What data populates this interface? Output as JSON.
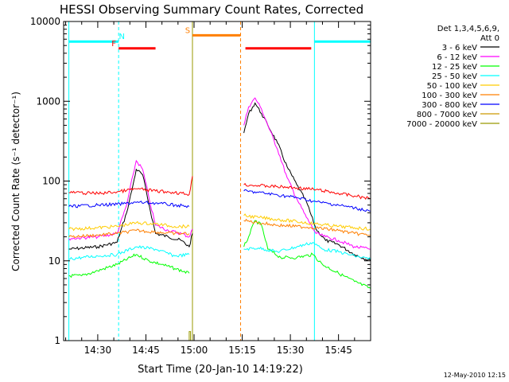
{
  "chart_data": {
    "type": "line",
    "title": "HESSI Observing Summary Count Rates, Corrected",
    "xlabel": "Start Time (20-Jan-10 14:19:22)",
    "ylabel": "Corrected Count Rate (s⁻¹ detector⁻¹)",
    "yscale": "log",
    "ylim": [
      1,
      10000
    ],
    "xlim": [
      "14:19:22",
      "15:55:00"
    ],
    "x_tick_labels": [
      "14:30",
      "14:45",
      "15:00",
      "15:15",
      "15:30",
      "15:45"
    ],
    "x_tick_minutes": [
      870,
      885,
      900,
      915,
      930,
      945
    ],
    "y_tick_labels": [
      "1",
      "10",
      "100",
      "1000",
      "10000"
    ],
    "y_tick_values": [
      1,
      10,
      100,
      1000,
      10000
    ],
    "legend": {
      "header_line1": "Det 1,3,4,5,6,9,",
      "header_line2": "Att 0",
      "position": "right"
    },
    "date_stamp": "12-May-2010 12:15",
    "series": [
      {
        "name": "3 - 6 keV",
        "color": "#000000",
        "points": [
          [
            861,
            14
          ],
          [
            870,
            15
          ],
          [
            876,
            17
          ],
          [
            879,
            40
          ],
          [
            881,
            90
          ],
          [
            882,
            140
          ],
          [
            884,
            120
          ],
          [
            886,
            50
          ],
          [
            888,
            22
          ],
          [
            892,
            20
          ],
          [
            896,
            18
          ],
          [
            898.5,
            15
          ],
          [
            899.5,
            22
          ],
          [
            915.5,
            400
          ],
          [
            917,
            700
          ],
          [
            919,
            950
          ],
          [
            921,
            700
          ],
          [
            923,
            500
          ],
          [
            926,
            300
          ],
          [
            929,
            150
          ],
          [
            932,
            90
          ],
          [
            935,
            55
          ],
          [
            938,
            25
          ],
          [
            941,
            18
          ],
          [
            945,
            16
          ],
          [
            950,
            12
          ],
          [
            955,
            10
          ]
        ]
      },
      {
        "name": "6 - 12 keV",
        "color": "#ff00ff",
        "points": [
          [
            861,
            19
          ],
          [
            870,
            20
          ],
          [
            876,
            22
          ],
          [
            879,
            50
          ],
          [
            881,
            120
          ],
          [
            882,
            180
          ],
          [
            884,
            140
          ],
          [
            886,
            60
          ],
          [
            888,
            28
          ],
          [
            892,
            24
          ],
          [
            896,
            22
          ],
          [
            898.5,
            20
          ],
          [
            899.5,
            25
          ],
          [
            915.5,
            500
          ],
          [
            917,
            850
          ],
          [
            919,
            1100
          ],
          [
            921,
            800
          ],
          [
            923,
            500
          ],
          [
            926,
            250
          ],
          [
            929,
            110
          ],
          [
            932,
            60
          ],
          [
            935,
            35
          ],
          [
            938,
            22
          ],
          [
            941,
            20
          ],
          [
            945,
            18
          ],
          [
            950,
            15
          ],
          [
            955,
            14
          ]
        ]
      },
      {
        "name": "12 - 25 keV",
        "color": "#00ff00",
        "points": [
          [
            861,
            6.5
          ],
          [
            865,
            6.5
          ],
          [
            870,
            7.5
          ],
          [
            876,
            9
          ],
          [
            882,
            12
          ],
          [
            886,
            10
          ],
          [
            890,
            9
          ],
          [
            894,
            8
          ],
          [
            898.5,
            7
          ],
          [
            915.5,
            15
          ],
          [
            917,
            20
          ],
          [
            919,
            32
          ],
          [
            921,
            28
          ],
          [
            923,
            14
          ],
          [
            927,
            11
          ],
          [
            932,
            11
          ],
          [
            937,
            12
          ],
          [
            940,
            9
          ],
          [
            945,
            7
          ],
          [
            950,
            5.5
          ],
          [
            955,
            4.5
          ]
        ]
      },
      {
        "name": "25 - 50 keV",
        "color": "#00ffff",
        "points": [
          [
            861,
            10.5
          ],
          [
            865,
            11
          ],
          [
            870,
            11.5
          ],
          [
            876,
            12
          ],
          [
            882,
            15
          ],
          [
            888,
            14
          ],
          [
            894,
            11.5
          ],
          [
            898.5,
            12
          ],
          [
            915.5,
            14
          ],
          [
            920,
            14.5
          ],
          [
            926,
            13
          ],
          [
            932,
            15
          ],
          [
            937,
            17
          ],
          [
            940,
            14
          ],
          [
            945,
            13
          ],
          [
            950,
            11.5
          ],
          [
            955,
            10.5
          ]
        ]
      },
      {
        "name": "50 - 100 keV",
        "color": "#ffcc00",
        "points": [
          [
            861,
            25
          ],
          [
            870,
            26
          ],
          [
            876,
            27
          ],
          [
            882,
            30
          ],
          [
            888,
            29
          ],
          [
            894,
            27
          ],
          [
            898.5,
            27
          ],
          [
            915.5,
            37
          ],
          [
            920,
            35
          ],
          [
            926,
            33
          ],
          [
            932,
            31
          ],
          [
            938,
            29
          ],
          [
            945,
            27
          ],
          [
            950,
            26
          ],
          [
            955,
            25
          ]
        ]
      },
      {
        "name": "100 - 300 keV",
        "color": "#ff7f00",
        "points": [
          [
            861,
            20
          ],
          [
            870,
            21
          ],
          [
            876,
            22
          ],
          [
            882,
            24
          ],
          [
            888,
            23
          ],
          [
            894,
            22
          ],
          [
            898.5,
            22
          ],
          [
            915.5,
            32
          ],
          [
            920,
            30
          ],
          [
            926,
            28
          ],
          [
            932,
            27
          ],
          [
            938,
            26
          ],
          [
            945,
            24
          ],
          [
            950,
            22
          ],
          [
            955,
            21
          ]
        ]
      },
      {
        "name": "300 - 800 keV",
        "color": "#0000ff",
        "points": [
          [
            861,
            48
          ],
          [
            870,
            50
          ],
          [
            876,
            51
          ],
          [
            882,
            54
          ],
          [
            888,
            53
          ],
          [
            894,
            50
          ],
          [
            898.5,
            48
          ],
          [
            915.5,
            75
          ],
          [
            920,
            72
          ],
          [
            926,
            67
          ],
          [
            932,
            62
          ],
          [
            938,
            55
          ],
          [
            945,
            50
          ],
          [
            950,
            46
          ],
          [
            955,
            42
          ]
        ]
      },
      {
        "name": "800 - 7000 keV",
        "color": "#cc9900",
        "points": []
      },
      {
        "name": "7000 - 20000 keV",
        "color": "#999900",
        "points": [
          [
            898.5,
            1
          ],
          [
            898.5,
            1.3
          ],
          [
            898.9,
            1.3
          ],
          [
            898.9,
            1
          ]
        ]
      },
      {
        "name": "",
        "color": "#ff0000",
        "legend": false,
        "points": [
          [
            861,
            72
          ],
          [
            870,
            70
          ],
          [
            876,
            73
          ],
          [
            882,
            80
          ],
          [
            888,
            75
          ],
          [
            894,
            72
          ],
          [
            898.5,
            68
          ],
          [
            899.5,
            115
          ],
          [
            915.5,
            90
          ],
          [
            920,
            88
          ],
          [
            926,
            85
          ],
          [
            932,
            82
          ],
          [
            938,
            78
          ],
          [
            945,
            70
          ],
          [
            950,
            65
          ],
          [
            955,
            60
          ]
        ]
      }
    ],
    "flag_bars": [
      {
        "label": "N",
        "color": "#00ffff",
        "label_color": "#00ffff",
        "label_at": 877.5,
        "y": 5600,
        "spans": [
          [
            861,
            876.5
          ],
          [
            937.5,
            955
          ]
        ]
      },
      {
        "label": "F",
        "color": "#ff0000",
        "label_color": "#ff0000",
        "label_at": 875,
        "y": 4600,
        "spans": [
          [
            876.5,
            888
          ],
          [
            916,
            936.5
          ]
        ]
      },
      {
        "label": "S",
        "color": "#ff7f00",
        "label_color": "#ff7f00",
        "label_at": 898,
        "y": 6700,
        "spans": [
          [
            899.5,
            914.5
          ]
        ]
      }
    ],
    "vertical_lines": [
      {
        "x": 861,
        "color": "#00ffff",
        "style": "solid"
      },
      {
        "x": 876.5,
        "color": "#00ffff",
        "style": "dashed"
      },
      {
        "x": 899.5,
        "color": "#999900",
        "style": "solid"
      },
      {
        "x": 914.5,
        "color": "#ff7f00",
        "style": "dashed"
      },
      {
        "x": 937.5,
        "color": "#00ffff",
        "style": "solid"
      },
      {
        "x": 955,
        "color": "#00ffff",
        "style": "dashed"
      }
    ]
  }
}
